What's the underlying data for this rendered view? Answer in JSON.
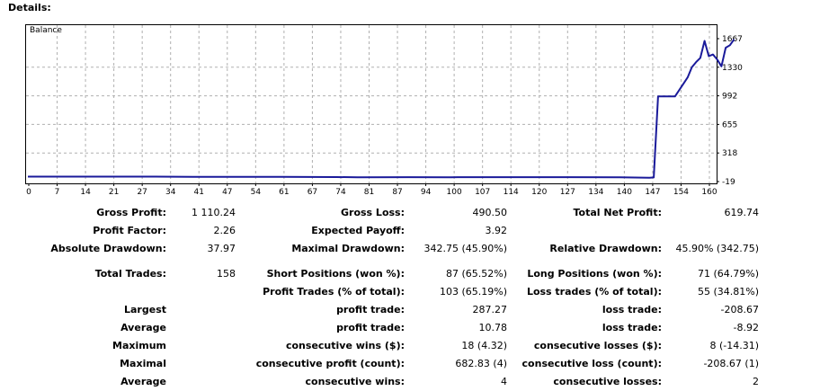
{
  "heading": "Details:",
  "chart_data": {
    "type": "line",
    "legend": "Balance",
    "x_ticks": [
      "0",
      "7",
      "14",
      "21",
      "27",
      "34",
      "41",
      "47",
      "54",
      "61",
      "67",
      "74",
      "81",
      "87",
      "94",
      "100",
      "107",
      "114",
      "120",
      "127",
      "134",
      "140",
      "147",
      "154",
      "160"
    ],
    "y_ticks": [
      "1667",
      "1330",
      "992",
      "655",
      "318",
      "-19"
    ],
    "ylim": [
      -19,
      1667
    ],
    "xlim": [
      0,
      162
    ],
    "series": [
      {
        "color": "#1a1a9a",
        "points": [
          [
            0,
            39
          ],
          [
            15,
            39
          ],
          [
            30,
            39
          ],
          [
            39,
            37
          ],
          [
            42,
            36
          ],
          [
            46,
            37
          ],
          [
            60,
            37
          ],
          [
            73,
            34
          ],
          [
            78,
            32
          ],
          [
            90,
            33
          ],
          [
            100,
            32
          ],
          [
            107,
            33
          ],
          [
            120,
            33
          ],
          [
            140,
            32
          ],
          [
            147,
            27
          ],
          [
            148,
            30
          ],
          [
            149,
            985
          ],
          [
            153,
            985
          ],
          [
            156,
            1210
          ],
          [
            157,
            1330
          ],
          [
            158,
            1390
          ],
          [
            159,
            1440
          ],
          [
            160,
            1640
          ],
          [
            161,
            1460
          ],
          [
            162,
            1480
          ],
          [
            163,
            1420
          ],
          [
            164,
            1340
          ],
          [
            165,
            1560
          ],
          [
            166,
            1590
          ],
          [
            167,
            1660
          ]
        ]
      }
    ],
    "grid": true
  },
  "rows": [
    [
      {
        "l": "Gross Profit:",
        "v": "1 110.24"
      },
      {
        "l": "Gross Loss:",
        "v": "490.50"
      },
      {
        "l": "Total Net Profit:",
        "v": "619.74"
      }
    ],
    [
      {
        "l": "Profit Factor:",
        "v": "2.26"
      },
      {
        "l": "Expected Payoff:",
        "v": "3.92"
      },
      {
        "l": "",
        "v": ""
      }
    ],
    [
      {
        "l": "Absolute Drawdown:",
        "v": "37.97"
      },
      {
        "l": "Maximal Drawdown:",
        "v": "342.75 (45.90%)"
      },
      {
        "l": "Relative Drawdown:",
        "v": "45.90% (342.75)"
      }
    ],
    [
      {
        "l": "Total Trades:",
        "v": "158"
      },
      {
        "l": "Short Positions (won %):",
        "v": "87 (65.52%)"
      },
      {
        "l": "Long Positions (won %):",
        "v": "71 (64.79%)"
      }
    ],
    [
      {
        "l": "",
        "v": ""
      },
      {
        "l": "Profit Trades (% of total):",
        "v": "103 (65.19%)"
      },
      {
        "l": "Loss trades (% of total):",
        "v": "55 (34.81%)"
      }
    ],
    [
      {
        "l": "Largest",
        "v": ""
      },
      {
        "l": "profit trade:",
        "v": "287.27"
      },
      {
        "l": "loss trade:",
        "v": "-208.67"
      }
    ],
    [
      {
        "l": "Average",
        "v": ""
      },
      {
        "l": "profit trade:",
        "v": "10.78"
      },
      {
        "l": "loss trade:",
        "v": "-8.92"
      }
    ],
    [
      {
        "l": "Maximum",
        "v": ""
      },
      {
        "l": "consecutive wins ($):",
        "v": "18 (4.32)"
      },
      {
        "l": "consecutive losses ($):",
        "v": "8 (-14.31)"
      }
    ],
    [
      {
        "l": "Maximal",
        "v": ""
      },
      {
        "l": "consecutive profit (count):",
        "v": "682.83 (4)"
      },
      {
        "l": "consecutive loss (count):",
        "v": "-208.67 (1)"
      }
    ],
    [
      {
        "l": "Average",
        "v": ""
      },
      {
        "l": "consecutive wins:",
        "v": "4"
      },
      {
        "l": "consecutive losses:",
        "v": "2"
      }
    ]
  ]
}
